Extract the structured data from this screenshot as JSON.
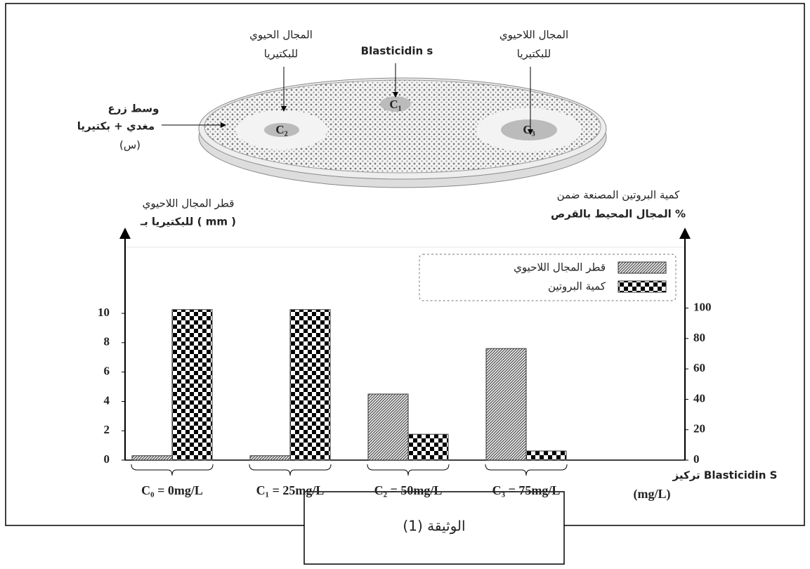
{
  "chart_data": {
    "type": "bar",
    "categories": [
      "C₀ = 0mg/L",
      "C₁ = 25mg/L",
      "C₂ = 50mg/L",
      "C₃ = 75mg/L"
    ],
    "series": [
      {
        "name": "قطر المجال اللاحيوي",
        "color": "#555555",
        "values": [
          0.3,
          0.3,
          4.5,
          7.6
        ]
      },
      {
        "name": "كمية البروتين",
        "color": "#000000",
        "axis": "y2",
        "values": [
          99,
          99,
          17,
          6
        ]
      }
    ],
    "ylim": [
      0,
      14.5
    ],
    "yticks": [
      0,
      2,
      4,
      6,
      8,
      10
    ],
    "y2lim": [
      0,
      140
    ],
    "y2ticks": [
      0,
      20,
      40,
      60,
      80,
      100
    ],
    "y_label": [
      "قطر المجال اللاحيوي",
      "للبكتيريا بـ ( mm )"
    ],
    "y2_label": [
      "كمية البروتين المصنعة ضمن",
      "المجال المحيط بالقرص %"
    ],
    "x_label": [
      "تركيز Blasticidin S",
      "(mg/L)"
    ],
    "grid": false,
    "legend": "top-right",
    "annotations": [
      "المجال الحيوي",
      "للبكتيريا",
      "Blasticidin s",
      "المجال اللاحيوي",
      "للبكتيريا",
      "وسط زرع",
      "مغدي + بكتيريا",
      "(س)",
      "C₁",
      "C₂",
      "C₃"
    ],
    "caption": "الوثيقة (1)"
  }
}
